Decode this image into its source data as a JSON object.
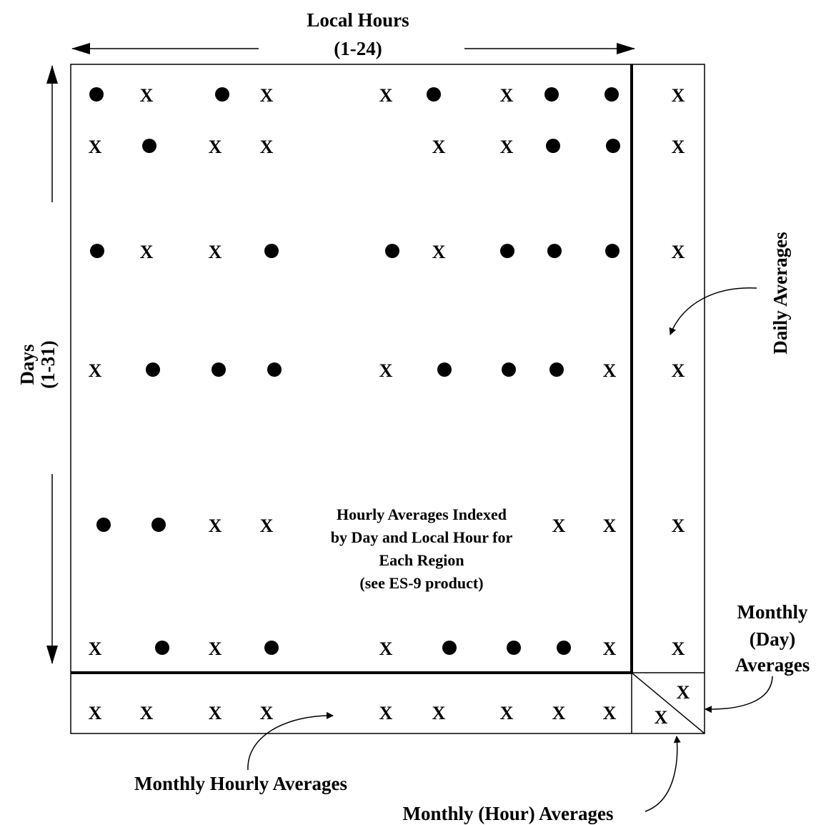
{
  "labels": {
    "local_hours": "Local Hours",
    "local_hours_range": "(1-24)",
    "days": "Days",
    "days_range": "(1-31)",
    "daily_averages": "Daily Averages",
    "monthly_day_line1": "Monthly",
    "monthly_day_line2": "(Day)",
    "monthly_day_line3": "Averages",
    "monthly_hourly_averages": "Monthly Hourly Averages",
    "monthly_hour_averages": "Monthly (Hour) Averages",
    "center_line1": "Hourly Averages Indexed",
    "center_line2": "by Day and Local Hour for",
    "center_line3": "Each Region",
    "center_line4": "(see ES-9 product)"
  },
  "grid": {
    "rows": [
      [
        "dot",
        "X",
        "dot",
        "X",
        "X",
        "dot",
        "X",
        "dot",
        "dot"
      ],
      [
        "X",
        "dot",
        "X",
        "X",
        "X",
        "X",
        "dot",
        "dot"
      ],
      [
        "dot",
        "X",
        "X",
        "dot",
        "dot",
        "X",
        "dot",
        "dot",
        "dot"
      ],
      [
        "X",
        "dot",
        "dot",
        "dot",
        "X",
        "dot",
        "dot",
        "dot",
        "X"
      ],
      [
        "dot",
        "dot",
        "X",
        "X",
        "X",
        "X"
      ],
      [
        "X",
        "dot",
        "X",
        "dot",
        "X",
        "dot",
        "dot",
        "dot",
        "X"
      ]
    ],
    "daily_averages_column": [
      "X",
      "X",
      "X",
      "X",
      "X",
      "X"
    ],
    "monthly_hourly_row": [
      "X",
      "X",
      "X",
      "X",
      "X",
      "X",
      "X",
      "X",
      "X"
    ],
    "corner_marks": [
      "X",
      "X"
    ]
  }
}
